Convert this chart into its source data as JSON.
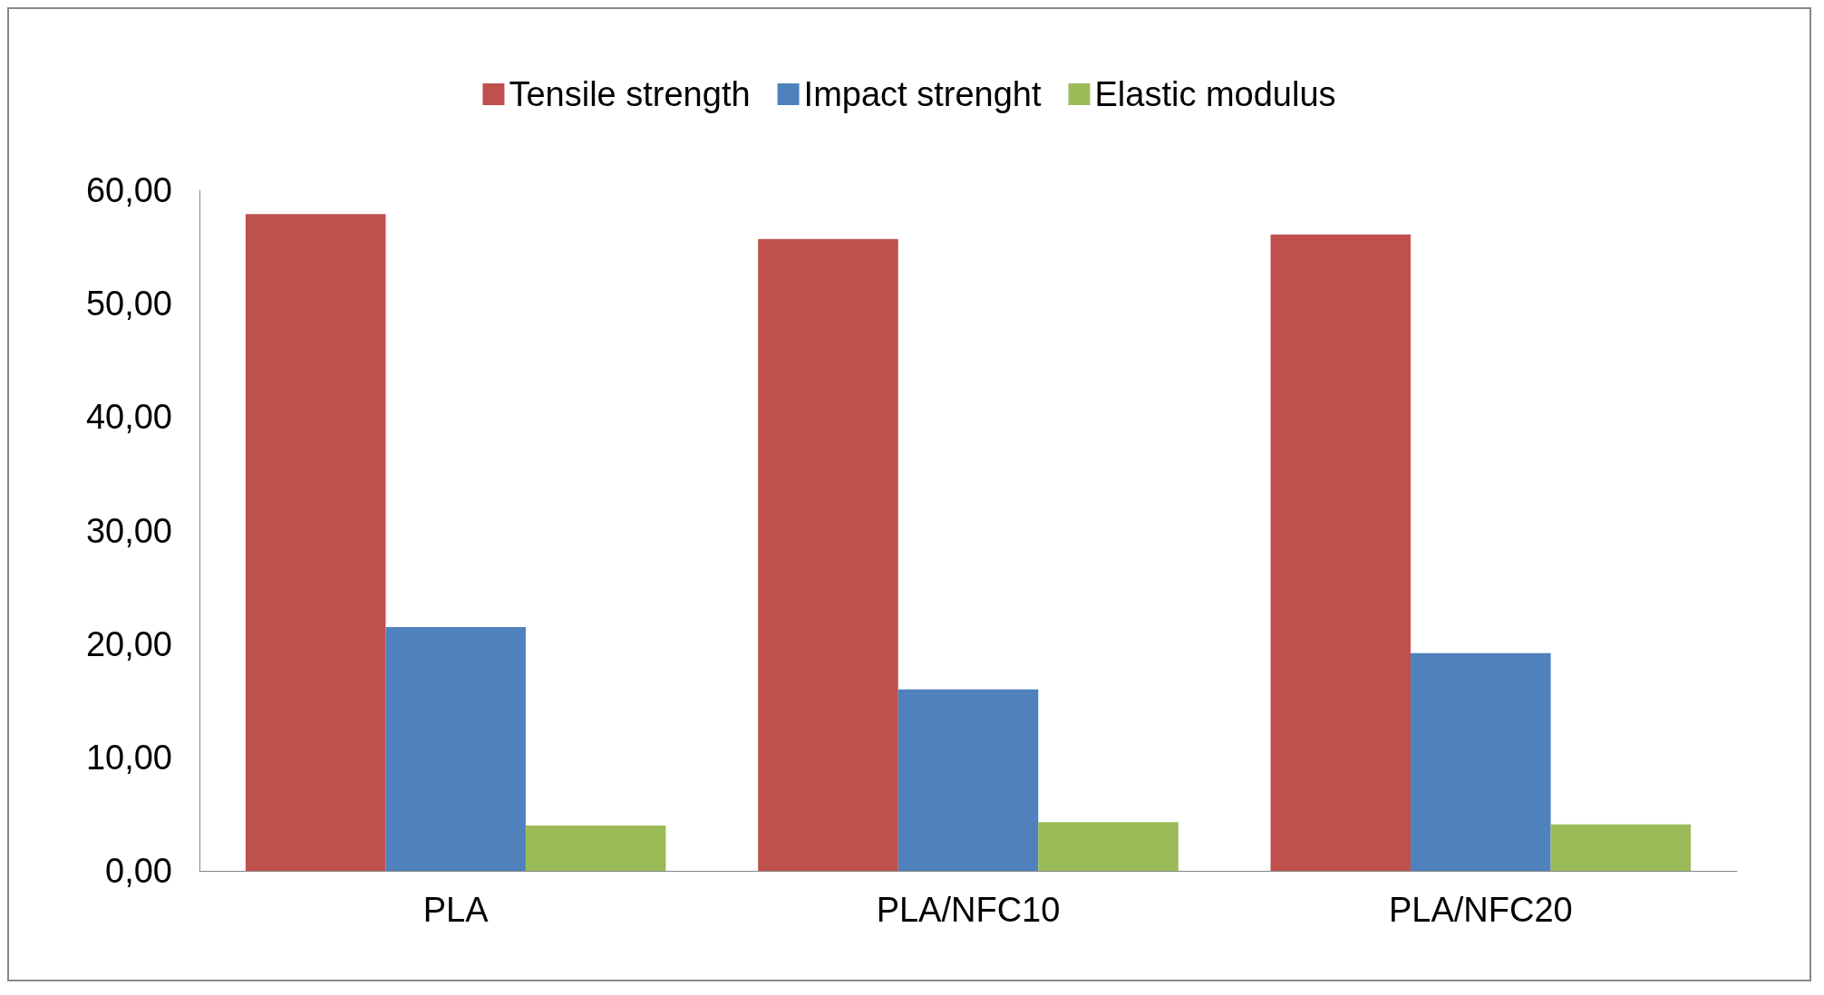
{
  "chart_data": {
    "type": "bar",
    "categories": [
      "PLA",
      "PLA/NFC10",
      "PLA/NFC20"
    ],
    "series": [
      {
        "name": "Tensile strength",
        "color": "#c0504d",
        "values": [
          57.9,
          55.7,
          56.1
        ]
      },
      {
        "name": "Impact strenght",
        "color": "#4f81bd",
        "values": [
          21.5,
          16.0,
          19.2
        ]
      },
      {
        "name": "Elastic modulus",
        "color": "#9bbb59",
        "values": [
          4.0,
          4.3,
          4.1
        ]
      }
    ],
    "ylim": [
      0,
      60
    ],
    "yticks": [
      {
        "value": 0,
        "label": "0,00"
      },
      {
        "value": 10,
        "label": "10,00"
      },
      {
        "value": 20,
        "label": "20,00"
      },
      {
        "value": 30,
        "label": "30,00"
      },
      {
        "value": 40,
        "label": "40,00"
      },
      {
        "value": 50,
        "label": "50,00"
      },
      {
        "value": 60,
        "label": "60,00"
      }
    ],
    "grid": false,
    "legend": "top"
  }
}
